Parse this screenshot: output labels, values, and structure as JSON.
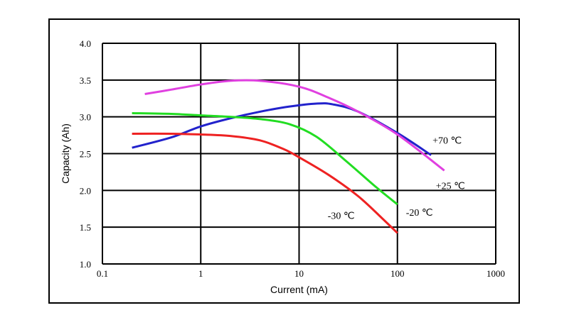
{
  "chart_data": {
    "type": "line",
    "title": "",
    "xlabel": "Current (mA)",
    "ylabel": "Capacity (Ah)",
    "x_scale": "log",
    "xlim": [
      0.1,
      1000
    ],
    "ylim": [
      1.0,
      4.0
    ],
    "x_ticks": [
      "0.1",
      "1",
      "10",
      "100",
      "1000"
    ],
    "y_ticks": [
      "1.0",
      "1.5",
      "2.0",
      "2.5",
      "3.0",
      "3.5",
      "4.0"
    ],
    "grid": true,
    "series": [
      {
        "name": "+70 ℃",
        "color": "#2222cc",
        "x": [
          0.2,
          0.5,
          1,
          2,
          4,
          8,
          15,
          22,
          40,
          100,
          220
        ],
        "y": [
          2.58,
          2.72,
          2.87,
          2.98,
          3.07,
          3.14,
          3.18,
          3.17,
          3.07,
          2.78,
          2.48
        ]
      },
      {
        "name": "+25 ℃",
        "color": "#e040e0",
        "x": [
          0.27,
          0.5,
          1,
          2,
          4,
          10,
          20,
          40,
          100,
          300
        ],
        "y": [
          3.31,
          3.37,
          3.44,
          3.49,
          3.49,
          3.41,
          3.26,
          3.07,
          2.76,
          2.27
        ]
      },
      {
        "name": "-20 ℃",
        "color": "#22dd22",
        "x": [
          0.2,
          0.5,
          1,
          2,
          4,
          8,
          15,
          30,
          60,
          100
        ],
        "y": [
          3.05,
          3.04,
          3.02,
          3.0,
          2.97,
          2.9,
          2.73,
          2.4,
          2.05,
          1.81
        ]
      },
      {
        "name": "-30 ℃",
        "color": "#ee2222",
        "x": [
          0.2,
          0.5,
          1,
          2,
          4,
          7,
          10,
          20,
          40,
          70,
          100
        ],
        "y": [
          2.77,
          2.77,
          2.76,
          2.74,
          2.68,
          2.56,
          2.45,
          2.21,
          1.92,
          1.62,
          1.42
        ]
      }
    ]
  }
}
